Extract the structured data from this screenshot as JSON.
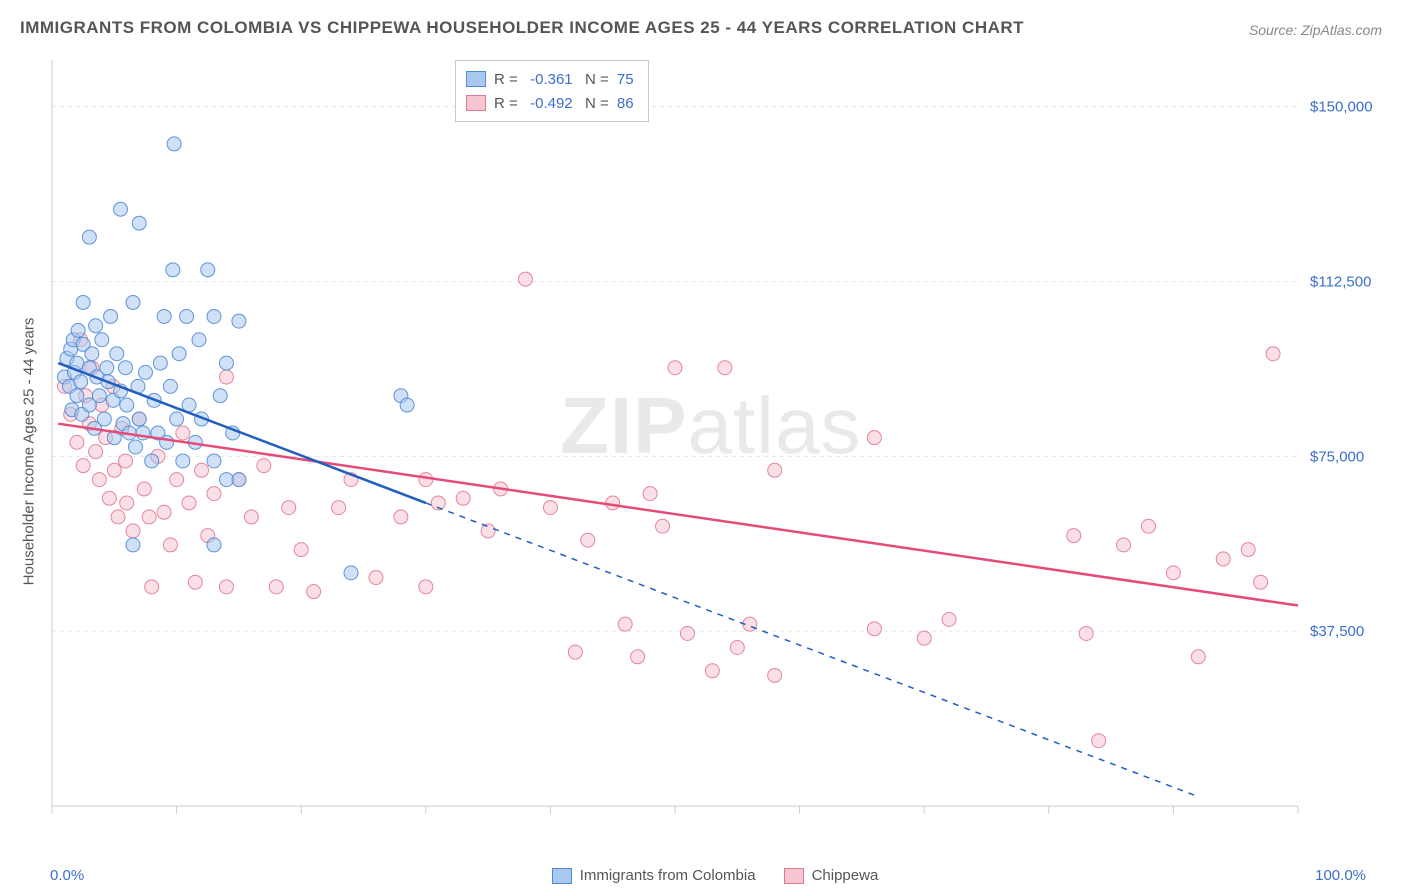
{
  "title": "IMMIGRANTS FROM COLOMBIA VS CHIPPEWA HOUSEHOLDER INCOME AGES 25 - 44 YEARS CORRELATION CHART",
  "source_label": "Source: ZipAtlas.com",
  "watermark_a": "ZIP",
  "watermark_b": "atlas",
  "ylabel": "Householder Income Ages 25 - 44 years",
  "chart": {
    "type": "scatter",
    "background_color": "#ffffff",
    "grid_color": "#e6e6e6",
    "axis_color": "#cccccc",
    "xlim": [
      0,
      100
    ],
    "ylim": [
      0,
      160000
    ],
    "x_end_labels": [
      "0.0%",
      "100.0%"
    ],
    "y_ticks": [
      37500,
      75000,
      112500,
      150000
    ],
    "y_tick_labels": [
      "$37,500",
      "$75,000",
      "$112,500",
      "$150,000"
    ],
    "x_minor_ticks": [
      0,
      10,
      20,
      30,
      40,
      50,
      60,
      70,
      80,
      90,
      100
    ],
    "label_color": "#3b6fc9",
    "label_fontsize": 15,
    "marker_radius": 7,
    "marker_opacity": 0.55,
    "marker_stroke_width": 1,
    "line_width": 2.5,
    "series": [
      {
        "name": "Immigrants from Colombia",
        "color_fill": "#a9c7ef",
        "color_stroke": "#4f8bd6",
        "line_color": "#1f5fc0",
        "r": -0.361,
        "n": 75,
        "regression": {
          "x1": 0.5,
          "y1": 95000,
          "x2": 30,
          "y2": 65000,
          "dash_from_x": 30,
          "x3": 92,
          "y3": 2000
        },
        "points": [
          [
            1,
            92000
          ],
          [
            1.2,
            96000
          ],
          [
            1.4,
            90000
          ],
          [
            1.5,
            98000
          ],
          [
            1.6,
            85000
          ],
          [
            1.7,
            100000
          ],
          [
            1.8,
            93000
          ],
          [
            2,
            95000
          ],
          [
            2,
            88000
          ],
          [
            2.1,
            102000
          ],
          [
            2.3,
            91000
          ],
          [
            2.4,
            84000
          ],
          [
            2.5,
            99000
          ],
          [
            2.5,
            108000
          ],
          [
            3,
            94000
          ],
          [
            3,
            86000
          ],
          [
            3.2,
            97000
          ],
          [
            3.4,
            81000
          ],
          [
            3.5,
            103000
          ],
          [
            3.6,
            92000
          ],
          [
            3.8,
            88000
          ],
          [
            4,
            100000
          ],
          [
            4.2,
            83000
          ],
          [
            4.4,
            94000
          ],
          [
            4.5,
            91000
          ],
          [
            4.7,
            105000
          ],
          [
            4.9,
            87000
          ],
          [
            5,
            79000
          ],
          [
            5.2,
            97000
          ],
          [
            5.5,
            89000
          ],
          [
            5.7,
            82000
          ],
          [
            5.9,
            94000
          ],
          [
            6,
            86000
          ],
          [
            6.2,
            80000
          ],
          [
            6.5,
            108000
          ],
          [
            6.7,
            77000
          ],
          [
            6.9,
            90000
          ],
          [
            7,
            83000
          ],
          [
            7,
            125000
          ],
          [
            7.3,
            80000
          ],
          [
            7.5,
            93000
          ],
          [
            8,
            74000
          ],
          [
            8.2,
            87000
          ],
          [
            8.5,
            80000
          ],
          [
            8.7,
            95000
          ],
          [
            9,
            105000
          ],
          [
            9.2,
            78000
          ],
          [
            9.5,
            90000
          ],
          [
            9.7,
            115000
          ],
          [
            9.8,
            142000
          ],
          [
            10,
            83000
          ],
          [
            10.2,
            97000
          ],
          [
            10.5,
            74000
          ],
          [
            10.8,
            105000
          ],
          [
            11,
            86000
          ],
          [
            11.5,
            78000
          ],
          [
            11.8,
            100000
          ],
          [
            12,
            83000
          ],
          [
            12.5,
            115000
          ],
          [
            13,
            105000
          ],
          [
            13,
            74000
          ],
          [
            13.5,
            88000
          ],
          [
            14,
            95000
          ],
          [
            14.5,
            80000
          ],
          [
            15,
            104000
          ],
          [
            15,
            70000
          ],
          [
            6.5,
            56000
          ],
          [
            13,
            56000
          ],
          [
            14,
            70000
          ],
          [
            28,
            88000
          ],
          [
            28.5,
            86000
          ],
          [
            24,
            50000
          ],
          [
            3,
            122000
          ],
          [
            5.5,
            128000
          ]
        ]
      },
      {
        "name": "Chippewa",
        "color_fill": "#f6c6d1",
        "color_stroke": "#e27a93",
        "line_color": "#e64b77",
        "r": -0.492,
        "n": 86,
        "regression": {
          "x1": 0.5,
          "y1": 82000,
          "x2": 100,
          "y2": 43000
        },
        "points": [
          [
            1,
            90000
          ],
          [
            1.5,
            84000
          ],
          [
            2,
            78000
          ],
          [
            2.3,
            100000
          ],
          [
            2.5,
            73000
          ],
          [
            2.7,
            88000
          ],
          [
            3,
            82000
          ],
          [
            3.2,
            94000
          ],
          [
            3.5,
            76000
          ],
          [
            3.8,
            70000
          ],
          [
            4,
            86000
          ],
          [
            4.3,
            79000
          ],
          [
            4.6,
            66000
          ],
          [
            4.9,
            90000
          ],
          [
            5,
            72000
          ],
          [
            5.3,
            62000
          ],
          [
            5.6,
            81000
          ],
          [
            5.9,
            74000
          ],
          [
            6,
            65000
          ],
          [
            6.5,
            59000
          ],
          [
            7,
            83000
          ],
          [
            7.4,
            68000
          ],
          [
            7.8,
            62000
          ],
          [
            8,
            47000
          ],
          [
            8.5,
            75000
          ],
          [
            9,
            63000
          ],
          [
            9.5,
            56000
          ],
          [
            10,
            70000
          ],
          [
            10.5,
            80000
          ],
          [
            11,
            65000
          ],
          [
            11.5,
            48000
          ],
          [
            12,
            72000
          ],
          [
            12.5,
            58000
          ],
          [
            13,
            67000
          ],
          [
            14,
            47000
          ],
          [
            14,
            92000
          ],
          [
            15,
            70000
          ],
          [
            16,
            62000
          ],
          [
            17,
            73000
          ],
          [
            18,
            47000
          ],
          [
            19,
            64000
          ],
          [
            20,
            55000
          ],
          [
            21,
            46000
          ],
          [
            23,
            64000
          ],
          [
            24,
            70000
          ],
          [
            26,
            49000
          ],
          [
            28,
            62000
          ],
          [
            30,
            70000
          ],
          [
            30,
            47000
          ],
          [
            31,
            65000
          ],
          [
            33,
            66000
          ],
          [
            35,
            59000
          ],
          [
            36,
            68000
          ],
          [
            38,
            113000
          ],
          [
            40,
            64000
          ],
          [
            42,
            33000
          ],
          [
            43,
            57000
          ],
          [
            45,
            65000
          ],
          [
            46,
            39000
          ],
          [
            47,
            32000
          ],
          [
            48,
            67000
          ],
          [
            49,
            60000
          ],
          [
            50,
            94000
          ],
          [
            51,
            37000
          ],
          [
            53,
            29000
          ],
          [
            54,
            94000
          ],
          [
            55,
            34000
          ],
          [
            56,
            39000
          ],
          [
            58,
            72000
          ],
          [
            58,
            28000
          ],
          [
            66,
            38000
          ],
          [
            66,
            79000
          ],
          [
            70,
            36000
          ],
          [
            72,
            40000
          ],
          [
            82,
            58000
          ],
          [
            83,
            37000
          ],
          [
            86,
            56000
          ],
          [
            88,
            60000
          ],
          [
            90,
            50000
          ],
          [
            92,
            32000
          ],
          [
            94,
            53000
          ],
          [
            96,
            55000
          ],
          [
            97,
            48000
          ],
          [
            98,
            97000
          ],
          [
            84,
            14000
          ]
        ]
      }
    ],
    "bottom_legend": [
      {
        "label": "Immigrants from Colombia",
        "fill": "#a9c7ef",
        "stroke": "#4f8bd6"
      },
      {
        "label": "Chippewa",
        "fill": "#f6c6d1",
        "stroke": "#e27a93"
      }
    ]
  }
}
